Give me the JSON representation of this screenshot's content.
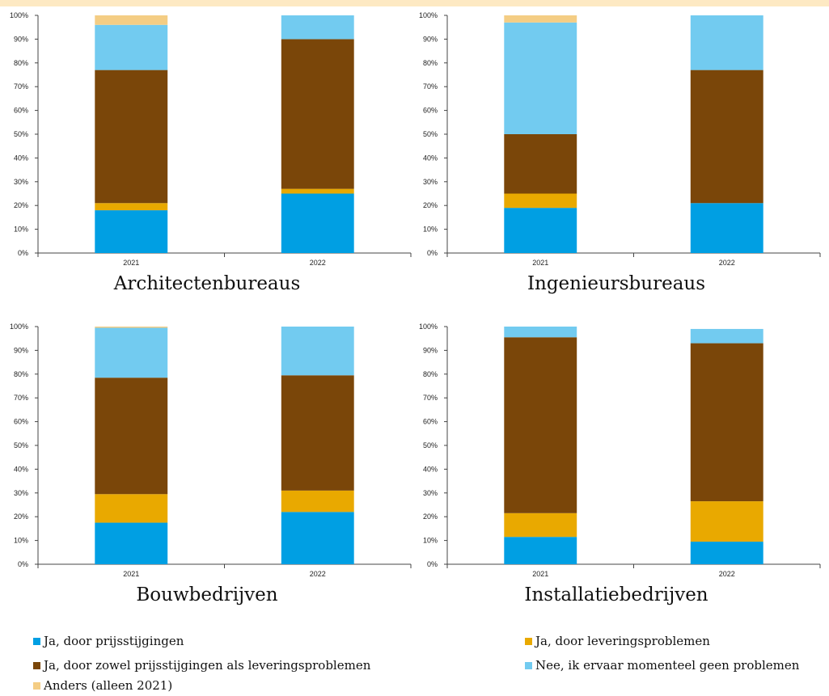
{
  "colors": {
    "top_band": "#fde9c3",
    "series": [
      "#009fe3",
      "#e9a900",
      "#7a4609",
      "#72cbf0",
      "#f4cd84"
    ]
  },
  "chart_data": [
    {
      "type": "bar",
      "stacked": true,
      "title": "Architectenbureaus",
      "categories": [
        "2021",
        "2022"
      ],
      "ylim": [
        0,
        100
      ],
      "yticks": [
        "0%",
        "10%",
        "20%",
        "30%",
        "40%",
        "50%",
        "60%",
        "70%",
        "80%",
        "90%",
        "100%"
      ],
      "series": [
        {
          "name": "Ja, door prijsstijgingen",
          "values": [
            18,
            25
          ]
        },
        {
          "name": "Ja, door leveringsproblemen",
          "values": [
            3,
            2
          ]
        },
        {
          "name": "Ja, door zowel prijsstijgingen als leveringsproblemen",
          "values": [
            56,
            63
          ]
        },
        {
          "name": "Nee, ik ervaar momenteel geen problemen",
          "values": [
            19,
            10
          ]
        },
        {
          "name": "Anders (alleen 2021)",
          "values": [
            4,
            0
          ]
        }
      ]
    },
    {
      "type": "bar",
      "stacked": true,
      "title": "Ingenieursbureaus",
      "categories": [
        "2021",
        "2022"
      ],
      "ylim": [
        0,
        100
      ],
      "yticks": [
        "0%",
        "10%",
        "20%",
        "30%",
        "40%",
        "50%",
        "60%",
        "70%",
        "80%",
        "90%",
        "100%"
      ],
      "series": [
        {
          "name": "Ja, door prijsstijgingen",
          "values": [
            19,
            21
          ]
        },
        {
          "name": "Ja, door leveringsproblemen",
          "values": [
            6,
            0
          ]
        },
        {
          "name": "Ja, door zowel prijsstijgingen als leveringsproblemen",
          "values": [
            25,
            56
          ]
        },
        {
          "name": "Nee, ik ervaar momenteel geen problemen",
          "values": [
            47,
            23
          ]
        },
        {
          "name": "Anders (alleen 2021)",
          "values": [
            3,
            0
          ]
        }
      ]
    },
    {
      "type": "bar",
      "stacked": true,
      "title": "Bouwbedrijven",
      "categories": [
        "2021",
        "2022"
      ],
      "ylim": [
        0,
        100
      ],
      "yticks": [
        "0%",
        "10%",
        "20%",
        "30%",
        "40%",
        "50%",
        "60%",
        "70%",
        "80%",
        "90%",
        "100%"
      ],
      "series": [
        {
          "name": "Ja, door prijsstijgingen",
          "values": [
            17.5,
            22
          ]
        },
        {
          "name": "Ja, door leveringsproblemen",
          "values": [
            12,
            9
          ]
        },
        {
          "name": "Ja, door zowel prijsstijgingen als leveringsproblemen",
          "values": [
            49,
            48.5
          ]
        },
        {
          "name": "Nee, ik ervaar momenteel geen problemen",
          "values": [
            21,
            20.5
          ]
        },
        {
          "name": "Anders (alleen 2021)",
          "values": [
            0.5,
            0
          ]
        }
      ]
    },
    {
      "type": "bar",
      "stacked": true,
      "title": "Installatiebedrijven",
      "categories": [
        "2021",
        "2022"
      ],
      "ylim": [
        0,
        100
      ],
      "yticks": [
        "0%",
        "10%",
        "20%",
        "30%",
        "40%",
        "50%",
        "60%",
        "70%",
        "80%",
        "90%",
        "100%"
      ],
      "series": [
        {
          "name": "Ja, door prijsstijgingen",
          "values": [
            11.5,
            9.5
          ]
        },
        {
          "name": "Ja, door leveringsproblemen",
          "values": [
            10,
            17
          ]
        },
        {
          "name": "Ja, door zowel prijsstijgingen als leveringsproblemen",
          "values": [
            74,
            66.5
          ]
        },
        {
          "name": "Nee, ik ervaar momenteel geen problemen",
          "values": [
            4.5,
            6
          ]
        },
        {
          "name": "Anders (alleen 2021)",
          "values": [
            0,
            0
          ]
        }
      ]
    }
  ],
  "legend": [
    {
      "label": "Ja, door prijsstijgingen"
    },
    {
      "label": "Ja, door leveringsproblemen"
    },
    {
      "label": "Ja, door zowel prijsstijgingen als leveringsproblemen"
    },
    {
      "label": "Nee, ik ervaar momenteel geen problemen"
    },
    {
      "label": "Anders (alleen 2021)"
    }
  ]
}
